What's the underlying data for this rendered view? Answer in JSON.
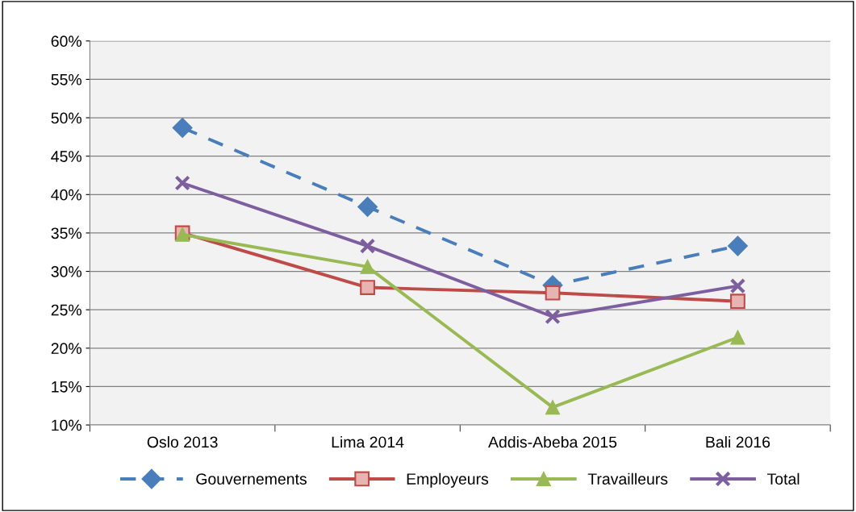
{
  "chart_data": {
    "type": "line",
    "categories": [
      "Oslo 2013",
      "Lima 2014",
      "Addis-Abeba 2015",
      "Bali 2016"
    ],
    "series": [
      {
        "name": "Gouvernements",
        "color": "#4a7ebb",
        "values": [
          48.7,
          38.4,
          28.2,
          33.3
        ],
        "marker": "diamond",
        "line_style": "dashed"
      },
      {
        "name": "Employeurs",
        "color": "#be4b48",
        "values": [
          35.0,
          27.9,
          27.2,
          26.1
        ],
        "marker": "square",
        "line_style": "solid"
      },
      {
        "name": "Travailleurs",
        "color": "#98b954",
        "values": [
          34.8,
          30.6,
          12.3,
          21.4
        ],
        "marker": "triangle",
        "line_style": "solid"
      },
      {
        "name": "Total",
        "color": "#7d5fa0",
        "values": [
          41.5,
          33.3,
          24.1,
          28.1
        ],
        "marker": "cross",
        "line_style": "solid"
      }
    ],
    "ylim": [
      10,
      60
    ],
    "yticks": [
      {
        "value": 10,
        "label": "10%"
      },
      {
        "value": 15,
        "label": "15%"
      },
      {
        "value": 20,
        "label": "20%"
      },
      {
        "value": 25,
        "label": "25%"
      },
      {
        "value": 30,
        "label": "30%"
      },
      {
        "value": 35,
        "label": "35%"
      },
      {
        "value": 40,
        "label": "40%"
      },
      {
        "value": 45,
        "label": "45%"
      },
      {
        "value": 50,
        "label": "50%"
      },
      {
        "value": 55,
        "label": "55%"
      },
      {
        "value": 60,
        "label": "60%"
      }
    ],
    "grid": "y",
    "legend": "bottom"
  }
}
